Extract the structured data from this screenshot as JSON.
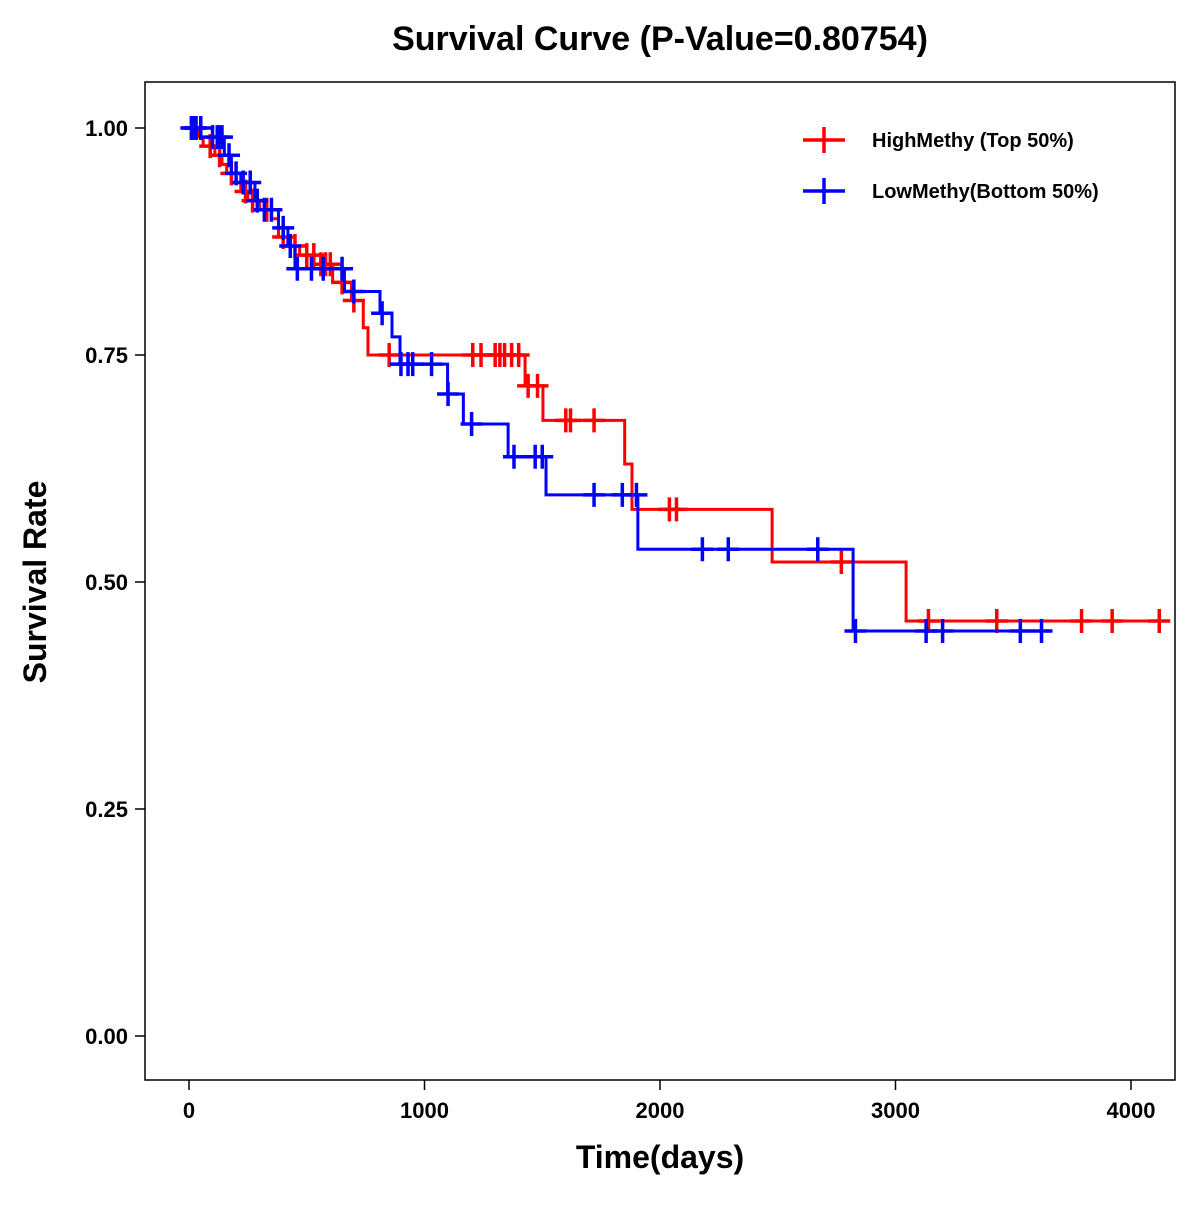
{
  "chart_data": {
    "type": "line",
    "subtype": "kaplan-meier",
    "title": "Survival Curve (P-Value=0.80754)",
    "xlabel": "Time(days)",
    "ylabel": "Survival Rate",
    "xlim": [
      -190,
      4180
    ],
    "ylim": [
      -0.05,
      1.05
    ],
    "xticks": [
      0,
      1000,
      2000,
      3000,
      4000
    ],
    "xtick_labels": [
      "0",
      "1000",
      "2000",
      "3000",
      "4000"
    ],
    "yticks": [
      0,
      0.25,
      0.5,
      0.75,
      1.0
    ],
    "ytick_labels": [
      "0.00",
      "0.25",
      "0.50",
      "0.75",
      "1.00"
    ],
    "grid": false,
    "legend_position": "top-right",
    "series": [
      {
        "name": "HighMethy (Top 50%)",
        "color": "#ff0000",
        "end": 4130,
        "steps": [
          [
            0,
            1.0
          ],
          [
            40,
            0.99
          ],
          [
            60,
            0.98
          ],
          [
            110,
            0.97
          ],
          [
            140,
            0.96
          ],
          [
            160,
            0.95
          ],
          [
            200,
            0.94
          ],
          [
            220,
            0.93
          ],
          [
            250,
            0.92
          ],
          [
            300,
            0.91
          ],
          [
            350,
            0.9
          ],
          [
            380,
            0.88
          ],
          [
            420,
            0.87
          ],
          [
            470,
            0.86
          ],
          [
            560,
            0.85
          ],
          [
            610,
            0.83
          ],
          [
            690,
            0.81
          ],
          [
            740,
            0.78
          ],
          [
            760,
            0.75
          ],
          [
            1427,
            0.716
          ],
          [
            1503,
            0.678
          ],
          [
            1850,
            0.63
          ],
          [
            1881,
            0.58
          ],
          [
            2476,
            0.522
          ],
          [
            3045,
            0.457
          ]
        ],
        "censored": [
          20,
          90,
          130,
          180,
          240,
          270,
          330,
          400,
          450,
          500,
          530,
          560,
          580,
          600,
          650,
          700,
          850,
          1205,
          1240,
          1300,
          1320,
          1340,
          1370,
          1400,
          1440,
          1480,
          1600,
          1620,
          1720,
          2040,
          2070,
          2770,
          3140,
          3430,
          3790,
          3920,
          4120
        ]
      },
      {
        "name": "LowMethy(Bottom 50%)",
        "color": "#0000ff",
        "end": 3660,
        "steps": [
          [
            0,
            1.0
          ],
          [
            100,
            0.99
          ],
          [
            150,
            0.97
          ],
          [
            180,
            0.95
          ],
          [
            220,
            0.94
          ],
          [
            280,
            0.92
          ],
          [
            320,
            0.91
          ],
          [
            380,
            0.89
          ],
          [
            420,
            0.87
          ],
          [
            450,
            0.845
          ],
          [
            660,
            0.82
          ],
          [
            811,
            0.796
          ],
          [
            862,
            0.77
          ],
          [
            896,
            0.74
          ],
          [
            1098,
            0.707
          ],
          [
            1165,
            0.674
          ],
          [
            1355,
            0.638
          ],
          [
            1516,
            0.596
          ],
          [
            1906,
            0.536
          ],
          [
            2820,
            0.446
          ]
        ],
        "censored": [
          10,
          25,
          30,
          50,
          100,
          120,
          130,
          140,
          170,
          200,
          230,
          260,
          290,
          320,
          350,
          400,
          430,
          460,
          520,
          570,
          650,
          700,
          820,
          900,
          930,
          950,
          1030,
          1100,
          1200,
          1380,
          1470,
          1500,
          1720,
          1840,
          1900,
          2180,
          2290,
          2670,
          2830,
          3130,
          3200,
          3530,
          3620
        ]
      }
    ]
  }
}
